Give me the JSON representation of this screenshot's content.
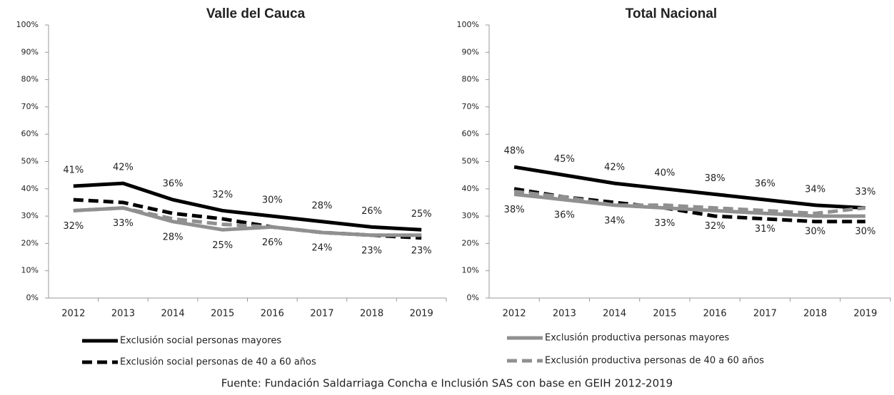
{
  "chart_data": [
    {
      "type": "line",
      "title": "Valle del Cauca",
      "categories": [
        "2012",
        "2013",
        "2014",
        "2015",
        "2016",
        "2017",
        "2018",
        "2019"
      ],
      "ylim": [
        0,
        100
      ],
      "yticks": [
        {
          "value": 0,
          "label": "0%"
        },
        {
          "value": 10,
          "label": "10%"
        },
        {
          "value": 20,
          "label": "20%"
        },
        {
          "value": 30,
          "label": "30%"
        },
        {
          "value": 40,
          "label": "40%"
        },
        {
          "value": 50,
          "label": "50%"
        },
        {
          "value": 60,
          "label": "60%"
        },
        {
          "value": 70,
          "label": "70%"
        },
        {
          "value": 80,
          "label": "80%"
        },
        {
          "value": 90,
          "label": "90%"
        },
        {
          "value": 100,
          "label": "100%"
        }
      ],
      "series": [
        {
          "name": "Exclusión social personas mayores",
          "color": "#000000",
          "dashed": false,
          "values": [
            41,
            42,
            36,
            32,
            30,
            28,
            26,
            25
          ],
          "value_labels": [
            "41%",
            "42%",
            "36%",
            "32%",
            "30%",
            "28%",
            "26%",
            "25%"
          ]
        },
        {
          "name": "Exclusión social personas de 40 a 60 años",
          "color": "#000000",
          "dashed": true,
          "values": [
            36,
            35,
            31,
            29,
            26,
            24,
            23,
            22
          ]
        },
        {
          "name": "Exclusión productiva personas mayores",
          "color": "#909090",
          "dashed": false,
          "values": [
            32,
            33,
            28,
            25,
            26,
            24,
            23,
            23
          ],
          "value_labels": [
            "32%",
            "33%",
            "28%",
            "25%",
            "26%",
            "24%",
            "23%",
            "23%"
          ]
        },
        {
          "name": "Exclusión productiva personas de 40 a 60 años",
          "color": "#909090",
          "dashed": true,
          "values": [
            32,
            33,
            29,
            27,
            26,
            24,
            23,
            23
          ]
        }
      ]
    },
    {
      "type": "line",
      "title": "Total Nacional",
      "categories": [
        "2012",
        "2013",
        "2014",
        "2015",
        "2016",
        "2017",
        "2018",
        "2019"
      ],
      "ylim": [
        0,
        100
      ],
      "yticks": [
        {
          "value": 0,
          "label": "0%"
        },
        {
          "value": 10,
          "label": "10%"
        },
        {
          "value": 20,
          "label": "20%"
        },
        {
          "value": 30,
          "label": "30%"
        },
        {
          "value": 40,
          "label": "40%"
        },
        {
          "value": 50,
          "label": "50%"
        },
        {
          "value": 60,
          "label": "60%"
        },
        {
          "value": 70,
          "label": "70%"
        },
        {
          "value": 80,
          "label": "80%"
        },
        {
          "value": 90,
          "label": "90%"
        },
        {
          "value": 100,
          "label": "100%"
        }
      ],
      "series": [
        {
          "color": "#000000",
          "dashed": false,
          "values": [
            48,
            45,
            42,
            40,
            38,
            36,
            34,
            33
          ],
          "value_labels": [
            "48%",
            "45%",
            "42%",
            "40%",
            "38%",
            "36%",
            "34%",
            "33%"
          ]
        },
        {
          "color": "#000000",
          "dashed": true,
          "values": [
            40,
            37,
            35,
            33,
            30,
            29,
            28,
            28
          ]
        },
        {
          "color": "#909090",
          "dashed": false,
          "values": [
            38,
            36,
            34,
            33,
            32,
            31,
            30,
            30
          ],
          "value_labels": [
            "38%",
            "36%",
            "34%",
            "33%",
            "32%",
            "31%",
            "30%",
            "30%"
          ]
        },
        {
          "color": "#909090",
          "dashed": true,
          "values": [
            39,
            37,
            34,
            34,
            33,
            32,
            31,
            33
          ]
        }
      ]
    }
  ],
  "source": "Fuente: Fundación Saldarriaga Concha e Inclusión SAS con base en GEIH 2012-2019"
}
